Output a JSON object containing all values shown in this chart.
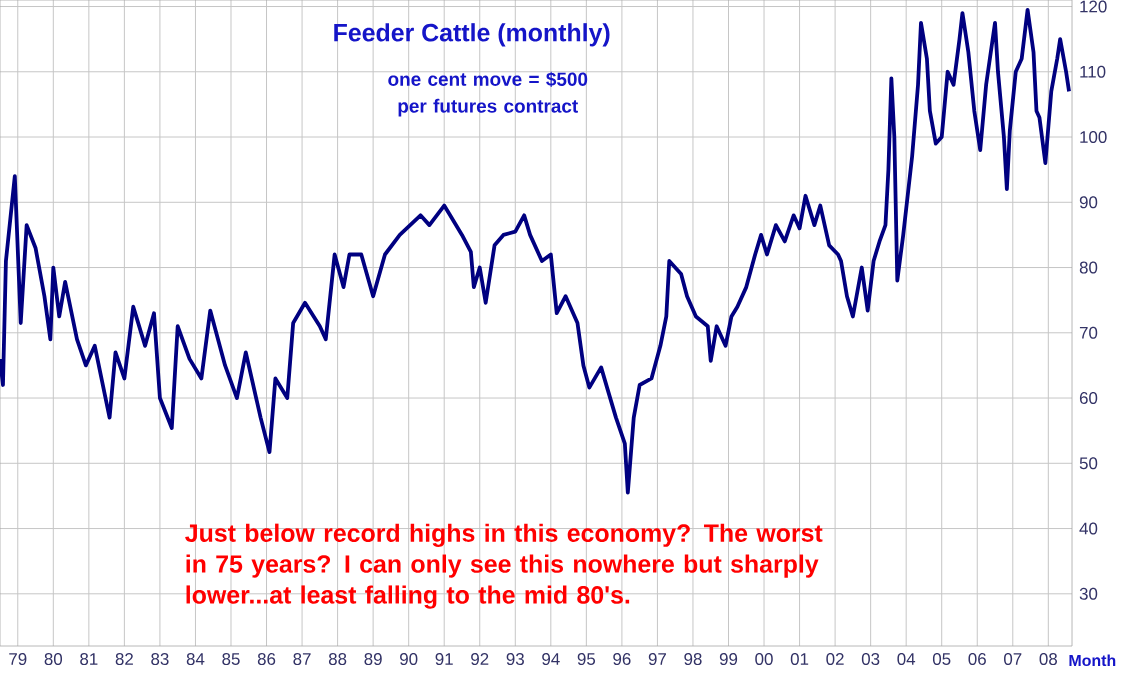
{
  "chart_data": {
    "type": "line",
    "title": "Feeder Cattle (monthly)",
    "subtitle": "one cent move = $500 per futures contract",
    "xlabel": "Month",
    "annotations": [
      "Just below record highs in this economy? The worst in 75 years? I can only see this nowhere but sharply lower...at least falling to the mid 80's."
    ],
    "grid": true,
    "marker": "none",
    "line_style": "solid",
    "xlim": [
      "1979-01",
      "2009-03"
    ],
    "ylim": [
      22,
      121
    ],
    "xticks": [
      {
        "value": "1979-07",
        "label": "79"
      },
      {
        "value": "1980-07",
        "label": "80"
      },
      {
        "value": "1981-07",
        "label": "81"
      },
      {
        "value": "1982-07",
        "label": "82"
      },
      {
        "value": "1983-07",
        "label": "83"
      },
      {
        "value": "1984-07",
        "label": "84"
      },
      {
        "value": "1985-07",
        "label": "85"
      },
      {
        "value": "1986-07",
        "label": "86"
      },
      {
        "value": "1987-07",
        "label": "87"
      },
      {
        "value": "1988-07",
        "label": "88"
      },
      {
        "value": "1989-07",
        "label": "89"
      },
      {
        "value": "1990-07",
        "label": "90"
      },
      {
        "value": "1991-07",
        "label": "91"
      },
      {
        "value": "1992-07",
        "label": "92"
      },
      {
        "value": "1993-07",
        "label": "93"
      },
      {
        "value": "1994-07",
        "label": "94"
      },
      {
        "value": "1995-07",
        "label": "95"
      },
      {
        "value": "1996-07",
        "label": "96"
      },
      {
        "value": "1997-07",
        "label": "97"
      },
      {
        "value": "1998-07",
        "label": "98"
      },
      {
        "value": "1999-07",
        "label": "99"
      },
      {
        "value": "2000-07",
        "label": "00"
      },
      {
        "value": "2001-07",
        "label": "01"
      },
      {
        "value": "2002-07",
        "label": "02"
      },
      {
        "value": "2003-07",
        "label": "03"
      },
      {
        "value": "2004-07",
        "label": "04"
      },
      {
        "value": "2005-07",
        "label": "05"
      },
      {
        "value": "2006-07",
        "label": "06"
      },
      {
        "value": "2007-07",
        "label": "07"
      },
      {
        "value": "2008-07",
        "label": "08"
      }
    ],
    "yticks": [
      30,
      40,
      50,
      60,
      70,
      80,
      90,
      100,
      110,
      120
    ],
    "series": [
      {
        "color": "#000080",
        "x": [
          "1979-01",
          "1979-02",
          "1979-03",
          "1979-06",
          "1979-08",
          "1979-10",
          "1980-01",
          "1980-04",
          "1980-06",
          "1980-07",
          "1980-09",
          "1980-11",
          "1981-03",
          "1981-06",
          "1981-09",
          "1982-02",
          "1982-04",
          "1982-07",
          "1982-10",
          "1983-02",
          "1983-05",
          "1983-07",
          "1983-11",
          "1984-01",
          "1984-05",
          "1984-09",
          "1984-12",
          "1985-05",
          "1985-09",
          "1985-12",
          "1986-05",
          "1986-08",
          "1986-10",
          "1987-02",
          "1987-04",
          "1987-08",
          "1988-01",
          "1988-03",
          "1988-06",
          "1988-09",
          "1988-11",
          "1989-03",
          "1989-07",
          "1989-11",
          "1990-04",
          "1990-11",
          "1991-02",
          "1991-07",
          "1991-09",
          "1992-01",
          "1992-04",
          "1992-05",
          "1992-07",
          "1992-09",
          "1992-12",
          "1993-03",
          "1993-07",
          "1993-10",
          "1993-12",
          "1994-04",
          "1994-07",
          "1994-09",
          "1994-12",
          "1995-04",
          "1995-06",
          "1995-08",
          "1995-12",
          "1996-02",
          "1996-05",
          "1996-08",
          "1996-09",
          "1996-11",
          "1997-01",
          "1997-05",
          "1997-08",
          "1997-10",
          "1997-11",
          "1998-03",
          "1998-05",
          "1998-08",
          "1998-12",
          "1999-01",
          "1999-03",
          "1999-06",
          "1999-08",
          "1999-10",
          "2000-01",
          "2000-04",
          "2000-06",
          "2000-08",
          "2000-11",
          "2001-02",
          "2001-05",
          "2001-07",
          "2001-09",
          "2001-12",
          "2002-02",
          "2002-05",
          "2002-08",
          "2002-09",
          "2002-11",
          "2003-01",
          "2003-04",
          "2003-06",
          "2003-08",
          "2003-10",
          "2003-12",
          "2004-01",
          "2004-02",
          "2004-03",
          "2004-04",
          "2004-06",
          "2004-09",
          "2004-11",
          "2004-12",
          "2005-02",
          "2005-03",
          "2005-05",
          "2005-07",
          "2005-09",
          "2005-11",
          "2006-01",
          "2006-02",
          "2006-04",
          "2006-06",
          "2006-08",
          "2006-10",
          "2007-01",
          "2007-02",
          "2007-04",
          "2007-05",
          "2007-06",
          "2007-08",
          "2007-10",
          "2007-12",
          "2008-02",
          "2008-03",
          "2008-04",
          "2008-06",
          "2008-08",
          "2008-10",
          "2008-11",
          "2009-01",
          "2009-02"
        ],
        "values": [
          66,
          62,
          81,
          94,
          71.5,
          86.5,
          83,
          75.6,
          69,
          80,
          72.5,
          77.8,
          69,
          65,
          68,
          57,
          67,
          63,
          74,
          68,
          73,
          60,
          55.4,
          71,
          66,
          63,
          73.4,
          65,
          60,
          67,
          57,
          51.7,
          63,
          60,
          71.5,
          74.6,
          71,
          69,
          82,
          77,
          82,
          82,
          75.6,
          82,
          85,
          88,
          86.5,
          89.5,
          88,
          85,
          82.4,
          77,
          80,
          74.6,
          83.4,
          85,
          85.5,
          88,
          85,
          81,
          82,
          73,
          75.6,
          71.5,
          65,
          61.6,
          64.7,
          61.6,
          57,
          53,
          45.5,
          57,
          62,
          63,
          68,
          72.5,
          81,
          79,
          75.6,
          72.5,
          71,
          65.7,
          71,
          68,
          72.5,
          74,
          77,
          82,
          85,
          82,
          86.5,
          84,
          88,
          86,
          91,
          86.5,
          89.5,
          83.4,
          82,
          81,
          75.6,
          72.5,
          80,
          73.4,
          81,
          84,
          86.5,
          95,
          109,
          100,
          78,
          85,
          97,
          108,
          117.5,
          112,
          104,
          99,
          100,
          110,
          108,
          115,
          119,
          113,
          104,
          98,
          108,
          117.5,
          110,
          100,
          92,
          101,
          110,
          112,
          119.5,
          113,
          104,
          103,
          96,
          107,
          112,
          115,
          110,
          107
        ]
      }
    ]
  }
}
